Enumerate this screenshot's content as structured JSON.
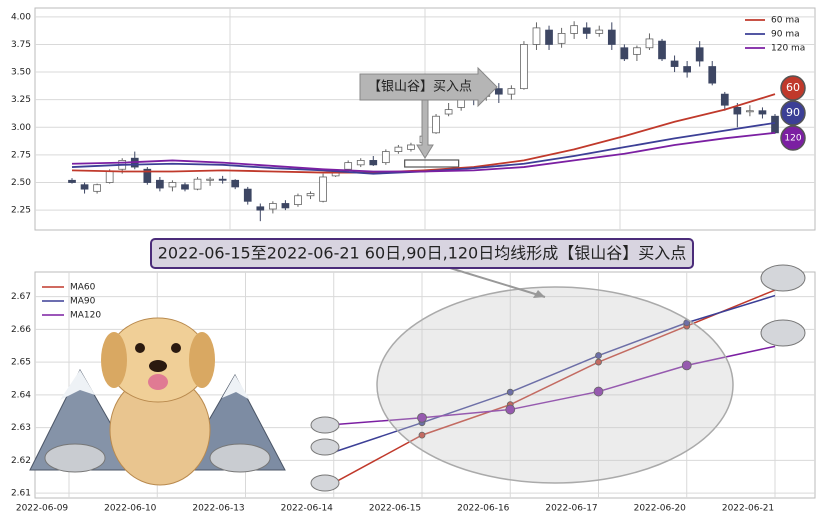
{
  "chart_data": [
    {
      "type": "candlestick",
      "ylim": [
        2.07,
        4.08
      ],
      "yticks": [
        {
          "value": 2.25,
          "label": "2.25"
        },
        {
          "value": 2.5,
          "label": "2.50"
        },
        {
          "value": 2.75,
          "label": "2.75"
        },
        {
          "value": 3.0,
          "label": "3.00"
        },
        {
          "value": 3.25,
          "label": "3.25"
        },
        {
          "value": 3.5,
          "label": "3.50"
        },
        {
          "value": 3.75,
          "label": "3.75"
        },
        {
          "value": 4.0,
          "label": "4.00"
        }
      ],
      "grid": true,
      "up_color": "#ffffff",
      "down_color": "#3d4663",
      "candles": [
        [
          2.52,
          2.54,
          2.49,
          2.5
        ],
        [
          2.48,
          2.5,
          2.4,
          2.44
        ],
        [
          2.42,
          2.49,
          2.4,
          2.48
        ],
        [
          2.5,
          2.62,
          2.49,
          2.6
        ],
        [
          2.62,
          2.72,
          2.58,
          2.7
        ],
        [
          2.72,
          2.78,
          2.62,
          2.64
        ],
        [
          2.62,
          2.64,
          2.48,
          2.5
        ],
        [
          2.52,
          2.55,
          2.42,
          2.45
        ],
        [
          2.46,
          2.52,
          2.42,
          2.5
        ],
        [
          2.48,
          2.5,
          2.42,
          2.44
        ],
        [
          2.44,
          2.55,
          2.43,
          2.53
        ],
        [
          2.52,
          2.55,
          2.47,
          2.53
        ],
        [
          2.53,
          2.56,
          2.49,
          2.52
        ],
        [
          2.52,
          2.53,
          2.44,
          2.46
        ],
        [
          2.44,
          2.46,
          2.3,
          2.33
        ],
        [
          2.28,
          2.31,
          2.15,
          2.25
        ],
        [
          2.26,
          2.33,
          2.22,
          2.31
        ],
        [
          2.31,
          2.34,
          2.25,
          2.27
        ],
        [
          2.3,
          2.4,
          2.28,
          2.38
        ],
        [
          2.38,
          2.42,
          2.35,
          2.4
        ],
        [
          2.33,
          2.58,
          2.32,
          2.55
        ],
        [
          2.56,
          2.62,
          2.55,
          2.6
        ],
        [
          2.62,
          2.7,
          2.6,
          2.68
        ],
        [
          2.66,
          2.72,
          2.64,
          2.7
        ],
        [
          2.7,
          2.74,
          2.65,
          2.66
        ],
        [
          2.68,
          2.8,
          2.66,
          2.78
        ],
        [
          2.78,
          2.84,
          2.76,
          2.82
        ],
        [
          2.8,
          2.86,
          2.78,
          2.84
        ],
        [
          2.86,
          2.95,
          2.84,
          2.92
        ],
        [
          2.95,
          3.12,
          2.94,
          3.1
        ],
        [
          3.12,
          3.22,
          3.1,
          3.16
        ],
        [
          3.18,
          3.35,
          3.15,
          3.3
        ],
        [
          3.3,
          3.4,
          3.2,
          3.25
        ],
        [
          3.28,
          3.42,
          3.24,
          3.38
        ],
        [
          3.35,
          3.4,
          3.22,
          3.3
        ],
        [
          3.3,
          3.38,
          3.25,
          3.35
        ],
        [
          3.35,
          3.78,
          3.34,
          3.75
        ],
        [
          3.75,
          3.95,
          3.7,
          3.9
        ],
        [
          3.88,
          3.92,
          3.7,
          3.75
        ],
        [
          3.76,
          3.9,
          3.72,
          3.85
        ],
        [
          3.85,
          3.96,
          3.8,
          3.92
        ],
        [
          3.9,
          3.95,
          3.8,
          3.85
        ],
        [
          3.85,
          3.92,
          3.82,
          3.88
        ],
        [
          3.88,
          3.95,
          3.7,
          3.75
        ],
        [
          3.72,
          3.75,
          3.6,
          3.62
        ],
        [
          3.66,
          3.74,
          3.6,
          3.72
        ],
        [
          3.72,
          3.85,
          3.7,
          3.8
        ],
        [
          3.78,
          3.8,
          3.6,
          3.62
        ],
        [
          3.6,
          3.65,
          3.5,
          3.55
        ],
        [
          3.55,
          3.6,
          3.45,
          3.5
        ],
        [
          3.72,
          3.78,
          3.55,
          3.6
        ],
        [
          3.55,
          3.6,
          3.38,
          3.4
        ],
        [
          3.3,
          3.32,
          3.15,
          3.2
        ],
        [
          3.18,
          3.22,
          3.0,
          3.12
        ],
        [
          3.14,
          3.2,
          3.1,
          3.15
        ],
        [
          3.15,
          3.18,
          3.08,
          3.12
        ],
        [
          3.1,
          3.12,
          2.94,
          2.95
        ]
      ],
      "ma_x": [
        0,
        4,
        8,
        12,
        16,
        20,
        24,
        28,
        32,
        36,
        40,
        44,
        48,
        52,
        56
      ],
      "series": [
        {
          "name": "60 ma",
          "color": "#c0392b",
          "badge": "60",
          "values": [
            2.61,
            2.6,
            2.6,
            2.61,
            2.6,
            2.59,
            2.59,
            2.61,
            2.64,
            2.7,
            2.8,
            2.92,
            3.05,
            3.16,
            3.3
          ]
        },
        {
          "name": "90 ma",
          "color": "#3c3f96",
          "badge": "90",
          "values": [
            2.64,
            2.66,
            2.67,
            2.66,
            2.63,
            2.61,
            2.58,
            2.6,
            2.63,
            2.67,
            2.74,
            2.82,
            2.9,
            2.97,
            3.04
          ]
        },
        {
          "name": "120 ma",
          "color": "#7b1fa2",
          "badge": "120",
          "values": [
            2.67,
            2.68,
            2.7,
            2.68,
            2.65,
            2.62,
            2.6,
            2.6,
            2.61,
            2.64,
            2.7,
            2.76,
            2.84,
            2.9,
            2.95
          ]
        }
      ],
      "legend": "upper right",
      "annotation": "【银山谷】买入点"
    },
    {
      "type": "line",
      "title": "2022-06-15至2022-06-21 60日,90日,120日均线形成【银山谷】买入点",
      "categories": [
        "2022-06-09",
        "2022-06-10",
        "2022-06-13",
        "2022-06-14",
        "2022-06-15",
        "2022-06-16",
        "2022-06-17",
        "2022-06-20",
        "2022-06-21"
      ],
      "ylim": [
        2.6085,
        2.6775
      ],
      "yticks": [
        2.61,
        2.62,
        2.63,
        2.64,
        2.65,
        2.66,
        2.67
      ],
      "grid": true,
      "legend": "upper left",
      "series": [
        {
          "name": "MA60",
          "color": "#c0392b",
          "values": [
            null,
            null,
            null,
            2.6131,
            2.6277,
            2.637,
            2.65,
            2.661,
            2.672
          ]
        },
        {
          "name": "MA90",
          "color": "#3c3f96",
          "values": [
            null,
            null,
            null,
            2.6225,
            2.6315,
            2.6408,
            2.652,
            2.662,
            2.6703
          ]
        },
        {
          "name": "MA120",
          "color": "#7b1fa2",
          "values": [
            null,
            null,
            null,
            2.6309,
            2.633,
            2.6355,
            2.641,
            2.649,
            2.6548
          ]
        }
      ]
    }
  ]
}
